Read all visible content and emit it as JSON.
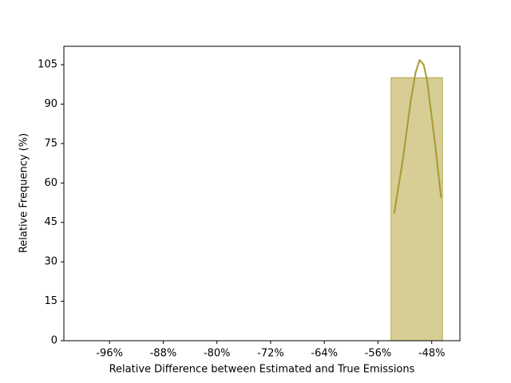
{
  "chart_data": {
    "type": "histogram",
    "x_label": "Relative Difference between Estimated and True Emissions",
    "y_label": "Relative Frequency (%)",
    "bins": [
      -100,
      -92.34,
      -84.69,
      -77.03,
      -69.37,
      -61.71,
      -54.06,
      -46.4
    ],
    "values": [
      0,
      0,
      0,
      0,
      0,
      0,
      100
    ],
    "color": "#d6ce95",
    "edge_color": "#b3a53e",
    "lines": [
      {
        "x": [
          -53.6,
          -52.3,
          -51.1,
          -50.4,
          -49.8,
          -49.2,
          -48.7,
          -47.5,
          -46.6
        ],
        "values": [
          48.3,
          68.9,
          91.7,
          102,
          106.8,
          105,
          99.2,
          75,
          54.3
        ],
        "color": "#a89a32"
      }
    ],
    "xlim": [
      -102.8,
      -43.8
    ],
    "ylim": [
      0,
      112
    ],
    "xticks": [
      {
        "value": -96,
        "label": "-96%"
      },
      {
        "value": -88,
        "label": "-88%"
      },
      {
        "value": -80,
        "label": "-80%"
      },
      {
        "value": -72,
        "label": "-72%"
      },
      {
        "value": -64,
        "label": "-64%"
      },
      {
        "value": -56,
        "label": "-56%"
      },
      {
        "value": -48,
        "label": "-48%"
      }
    ],
    "yticks": [
      0,
      15,
      30,
      45,
      60,
      75,
      90,
      105
    ]
  }
}
